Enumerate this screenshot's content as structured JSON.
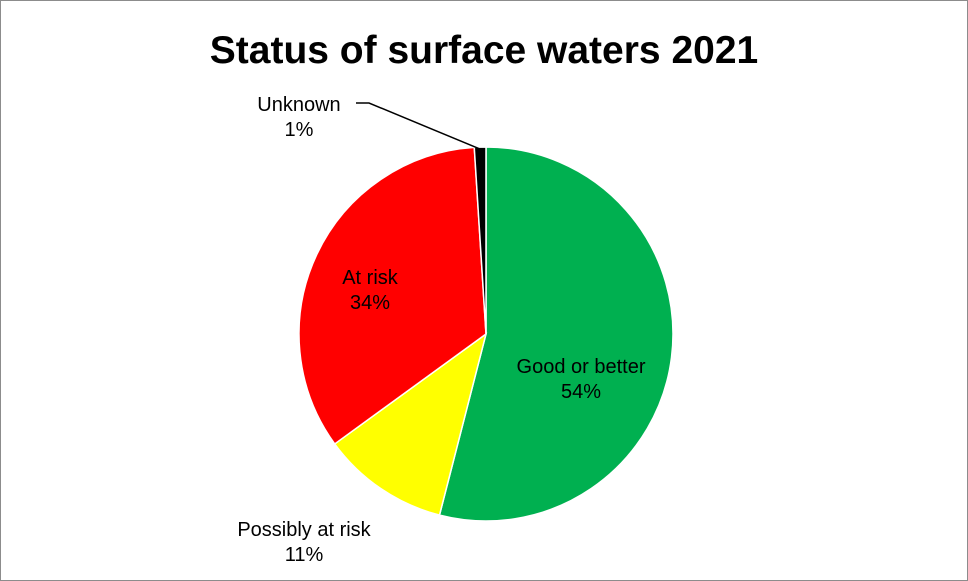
{
  "chart_data": {
    "type": "pie",
    "title": "Status of surface waters 2021",
    "slices": [
      {
        "label": "Good or better",
        "value": 54,
        "value_label": "54%",
        "color": "#00b050"
      },
      {
        "label": "Possibly at risk",
        "value": 11,
        "value_label": "11%",
        "color": "#ffff00"
      },
      {
        "label": "At risk",
        "value": 34,
        "value_label": "34%",
        "color": "#ff0000"
      },
      {
        "label": "Unknown",
        "value": 1,
        "value_label": "1%",
        "color": "#000000"
      }
    ],
    "legend": "none",
    "data_labels": "category and percentage"
  }
}
